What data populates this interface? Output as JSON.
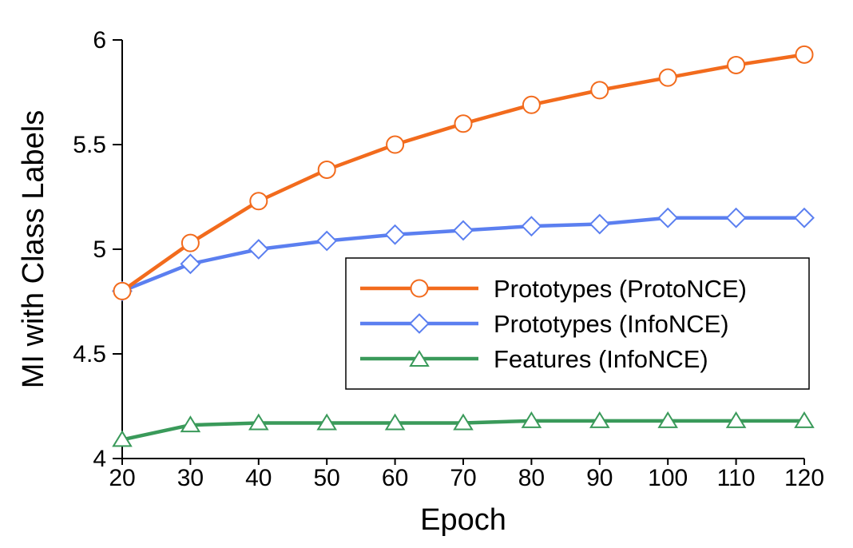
{
  "chart_data": {
    "type": "line",
    "title": "",
    "xlabel": "Epoch",
    "ylabel": "MI with Class Labels",
    "x": [
      20,
      30,
      40,
      50,
      60,
      70,
      80,
      90,
      100,
      110,
      120
    ],
    "x_ticks": [
      "20",
      "30",
      "40",
      "50",
      "60",
      "70",
      "80",
      "90",
      "100",
      "110",
      "120"
    ],
    "y_ticks": [
      "4",
      "4.5",
      "5",
      "5.5",
      "6"
    ],
    "xlim": [
      20,
      120
    ],
    "ylim": [
      4,
      6
    ],
    "grid": false,
    "legend_position": "center-right",
    "series": [
      {
        "name": "Prototypes (ProtoNCE)",
        "color": "#f26b1d",
        "marker": "circle",
        "values": [
          4.8,
          5.03,
          5.23,
          5.38,
          5.5,
          5.6,
          5.69,
          5.76,
          5.82,
          5.88,
          5.93
        ]
      },
      {
        "name": "Prototypes (InfoNCE)",
        "color": "#5b7ff0",
        "marker": "diamond",
        "values": [
          4.8,
          4.93,
          5.0,
          5.04,
          5.07,
          5.09,
          5.11,
          5.12,
          5.15,
          5.15,
          5.15
        ]
      },
      {
        "name": "Features (InfoNCE)",
        "color": "#3a9a5a",
        "marker": "triangle",
        "values": [
          4.09,
          4.16,
          4.17,
          4.17,
          4.17,
          4.17,
          4.18,
          4.18,
          4.18,
          4.18,
          4.18
        ]
      }
    ]
  }
}
